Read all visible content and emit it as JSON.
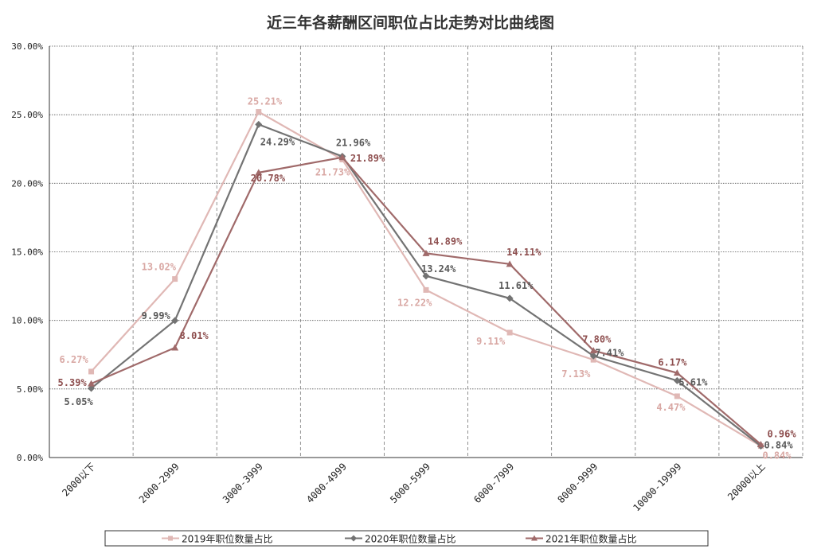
{
  "chart_data": {
    "type": "line",
    "title": "近三年各薪酬区间职位占比走势对比曲线图",
    "categories": [
      "2000以下",
      "2000-2999",
      "3000-3999",
      "4000-4999",
      "5000-5999",
      "6000-7999",
      "8000-9999",
      "10000-19999",
      "20000以上"
    ],
    "y_ticks": [
      "0.00%",
      "5.00%",
      "10.00%",
      "15.00%",
      "20.00%",
      "25.00%",
      "30.00%"
    ],
    "ylim": [
      0,
      30
    ],
    "grid": true,
    "legend": "bottom",
    "series": [
      {
        "name": "2019年职位数量占比",
        "color": "#e0b8b5",
        "label_color": "#d9a8a4",
        "marker": "square",
        "values": [
          6.27,
          13.02,
          25.21,
          21.73,
          12.22,
          9.11,
          7.13,
          4.47,
          0.84
        ],
        "labels": [
          "6.27%",
          "13.02%",
          "25.21%",
          "21.73%",
          "12.22%",
          "9.11%",
          "7.13%",
          "4.47%",
          "0.84%"
        ]
      },
      {
        "name": "2020年职位数量占比",
        "color": "#737373",
        "label_color": "#595959",
        "marker": "diamond",
        "values": [
          5.05,
          9.99,
          24.29,
          21.96,
          13.24,
          11.61,
          7.41,
          5.61,
          0.84
        ],
        "labels": [
          "5.05%",
          "9.99%",
          "24.29%",
          "21.96%",
          "13.24%",
          "11.61%",
          "7.41%",
          "5.61%",
          "0.84%"
        ]
      },
      {
        "name": "2021年职位数量占比",
        "color": "#a06a6a",
        "label_color": "#8e4f4f",
        "marker": "triangle",
        "values": [
          5.39,
          8.01,
          20.78,
          21.89,
          14.89,
          14.11,
          7.8,
          6.17,
          0.96
        ],
        "labels": [
          "5.39%",
          "8.01%",
          "20.78%",
          "21.89%",
          "14.89%",
          "14.11%",
          "7.80%",
          "6.17%",
          "0.96%"
        ]
      }
    ]
  }
}
